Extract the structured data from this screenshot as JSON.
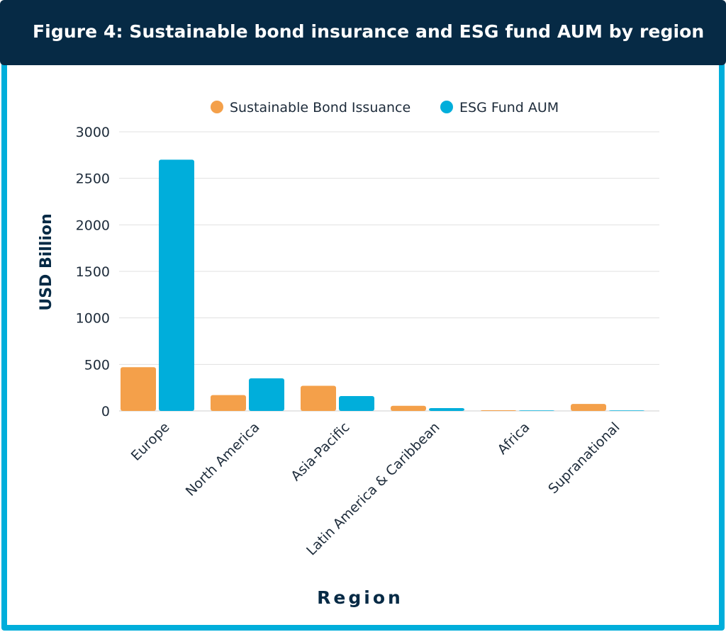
{
  "header": {
    "title": "Figure 4: Sustainable bond insurance and ESG fund AUM by region"
  },
  "colors": {
    "header_bg": "#062a45",
    "frame": "#00aedb",
    "bond": "#f4a04a",
    "esg": "#00aedb",
    "grid": "#e0e0e0"
  },
  "chart_data": {
    "type": "bar",
    "title": "Figure 4: Sustainable bond insurance and ESG fund AUM by region",
    "xlabel": "Region",
    "ylabel": "USD Billion",
    "ylim": [
      0,
      3000
    ],
    "yticks": [
      0,
      500,
      1000,
      1500,
      2000,
      2500,
      3000
    ],
    "grid": true,
    "legend_position": "top-center",
    "categories": [
      "Europe",
      "North America",
      "Asia-Pacific",
      "Latin America & Caribbean",
      "Africa",
      "Supranational"
    ],
    "series": [
      {
        "name": "Sustainable Bond Issuance",
        "color": "#f4a04a",
        "values": [
          470,
          170,
          270,
          55,
          8,
          75
        ]
      },
      {
        "name": "ESG Fund AUM",
        "color": "#00aedb",
        "values": [
          2700,
          350,
          160,
          30,
          3,
          2
        ]
      }
    ]
  }
}
